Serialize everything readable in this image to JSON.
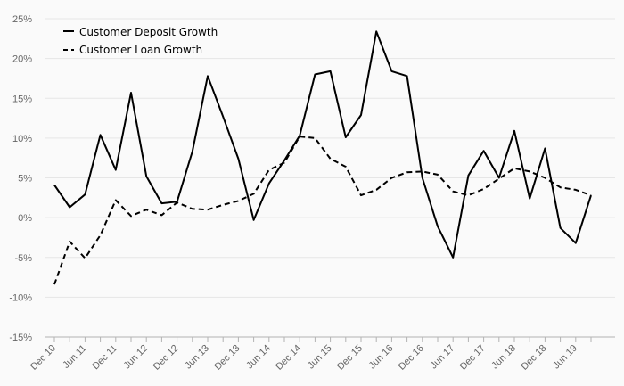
{
  "chart_data": {
    "type": "line",
    "y_ticks": [
      "25%",
      "20%",
      "15%",
      "10%",
      "5%",
      "0%",
      "-5%",
      "-10%",
      "-15%"
    ],
    "ylim": [
      -15,
      25
    ],
    "grid": true,
    "legend_position": "top-left",
    "x_tick_labels": [
      "Dec 10",
      "Jun 11",
      "Dec 11",
      "Jun 12",
      "Dec 12",
      "Jun 13",
      "Dec 13",
      "Jun 14",
      "Dec 14",
      "Jun 15",
      "Dec 15",
      "Jun 16",
      "Dec 16",
      "Jun 17",
      "Dec 17",
      "Jun 18",
      "Dec 18",
      "Jun 19"
    ],
    "x": [
      "Dec 10",
      "Mar 11",
      "Jun 11",
      "Sep 11",
      "Dec 11",
      "Mar 12",
      "Jun 12",
      "Sep 12",
      "Dec 12",
      "Mar 13",
      "Jun 13",
      "Sep 13",
      "Dec 13",
      "Mar 14",
      "Jun 14",
      "Sep 14",
      "Dec 14",
      "Mar 15",
      "Jun 15",
      "Sep 15",
      "Dec 15",
      "Mar 16",
      "Jun 16",
      "Sep 16",
      "Dec 16",
      "Mar 17",
      "Jun 17",
      "Sep 17",
      "Dec 17",
      "Mar 18",
      "Jun 18",
      "Sep 18",
      "Dec 18",
      "Mar 19",
      "Jun 19",
      "Sep 19"
    ],
    "series": [
      {
        "name": "Customer Deposit Growth",
        "style": "solid",
        "color": "#000000",
        "values": [
          4.1,
          1.3,
          2.9,
          10.4,
          6.0,
          15.7,
          5.2,
          1.8,
          2.0,
          8.3,
          17.8,
          12.7,
          7.4,
          -0.3,
          4.3,
          7.2,
          10.3,
          18.0,
          18.4,
          10.1,
          12.9,
          23.4,
          18.4,
          17.8,
          5.0,
          -1.1,
          -5.0,
          5.3,
          8.4,
          5.0,
          10.9,
          2.4,
          8.7,
          -1.3,
          -3.2,
          2.8
        ]
      },
      {
        "name": "Customer Loan Growth",
        "style": "dashed",
        "color": "#000000",
        "values": [
          -8.4,
          -3.0,
          -5.1,
          -2.2,
          2.2,
          0.2,
          1.0,
          0.3,
          1.9,
          1.1,
          1.0,
          1.6,
          2.1,
          3.0,
          6.0,
          6.9,
          10.2,
          10.0,
          7.4,
          6.4,
          2.8,
          3.5,
          5.0,
          5.7,
          5.8,
          5.4,
          3.3,
          2.8,
          3.6,
          4.9,
          6.2,
          5.8,
          5.0,
          3.8,
          3.5,
          2.8
        ]
      }
    ]
  }
}
